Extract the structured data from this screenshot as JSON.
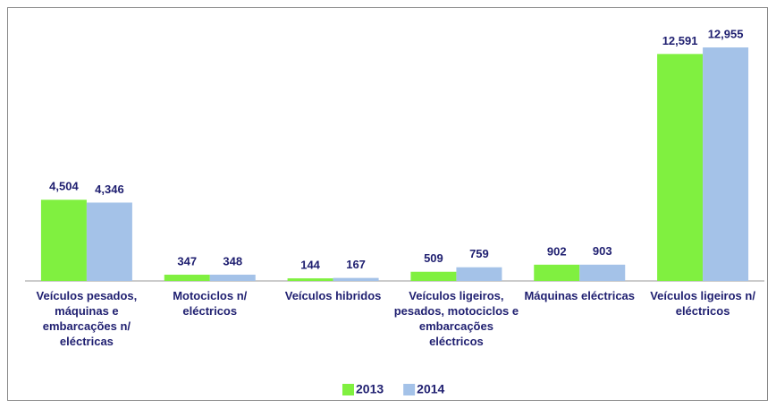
{
  "chart_data": {
    "type": "bar",
    "categories": [
      "Veículos pesados, máquinas e embarcações n/ eléctricas",
      "Motociclos n/ eléctricos",
      "Veículos hibridos",
      "Veículos ligeiros, pesados, motociclos e embarcações eléctricos",
      "Máquinas eléctricas",
      "Veículos ligeiros n/ eléctricos"
    ],
    "series": [
      {
        "name": "2013",
        "color": "#80f040",
        "values": [
          4504,
          347,
          144,
          509,
          902,
          12591
        ],
        "value_labels": [
          "4,504",
          "347",
          "144",
          "509",
          "902",
          "12,591"
        ]
      },
      {
        "name": "2014",
        "color": "#a4c2e8",
        "values": [
          4346,
          348,
          167,
          759,
          903,
          12955
        ],
        "value_labels": [
          "4,346",
          "348",
          "167",
          "759",
          "903",
          "12,955"
        ]
      }
    ],
    "legend": "bottom"
  }
}
